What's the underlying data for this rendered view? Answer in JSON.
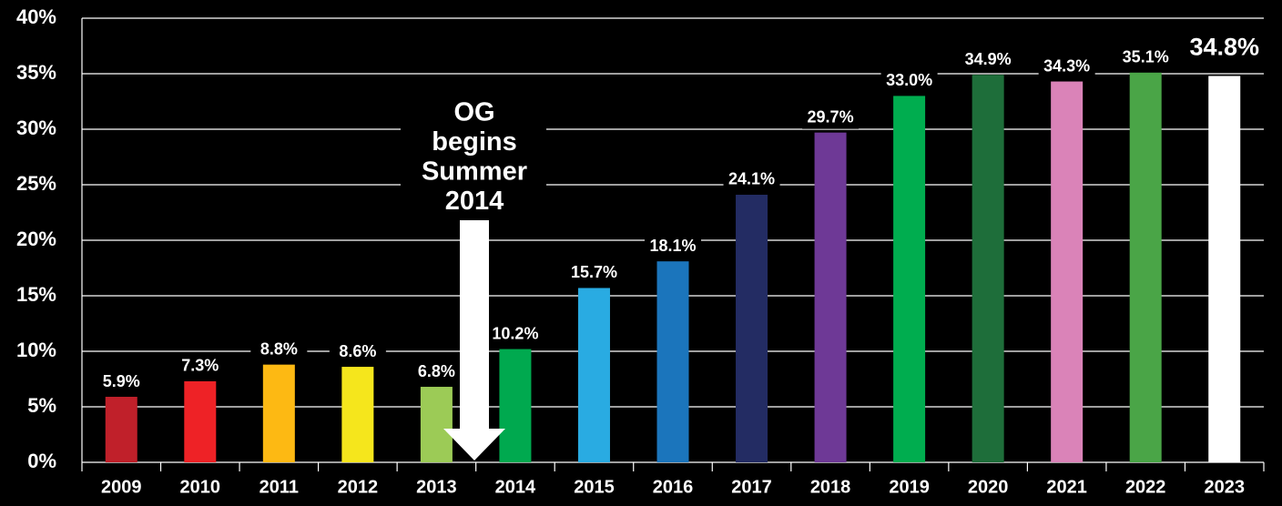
{
  "chart_data": {
    "type": "bar",
    "categories": [
      "2009",
      "2010",
      "2011",
      "2012",
      "2013",
      "2014",
      "2015",
      "2016",
      "2017",
      "2018",
      "2019",
      "2020",
      "2021",
      "2022",
      "2023"
    ],
    "values": [
      5.9,
      7.3,
      8.8,
      8.6,
      6.8,
      10.2,
      15.7,
      18.1,
      24.1,
      29.7,
      33.0,
      34.9,
      34.3,
      35.1,
      34.8
    ],
    "value_labels": [
      "5.9%",
      "7.3%",
      "8.8%",
      "8.6%",
      "6.8%",
      "10.2%",
      "15.7%",
      "18.1%",
      "24.1%",
      "29.7%",
      "33.0%",
      "34.9%",
      "34.3%",
      "35.1%",
      "34.8%"
    ],
    "colors": [
      "#c0202a",
      "#ee2226",
      "#fdb913",
      "#f5e61c",
      "#9ccb56",
      "#00a94f",
      "#29abe2",
      "#1b75bc",
      "#232c63",
      "#6e3996",
      "#00ad4f",
      "#1e6e3a",
      "#da83b8",
      "#4aa547",
      "#ffffff"
    ],
    "ylim": [
      0,
      40
    ],
    "yticks": [
      {
        "value": 0,
        "label": "0%"
      },
      {
        "value": 5,
        "label": "5%"
      },
      {
        "value": 10,
        "label": "10%"
      },
      {
        "value": 15,
        "label": "15%"
      },
      {
        "value": 20,
        "label": "20%"
      },
      {
        "value": 25,
        "label": "25%"
      },
      {
        "value": 30,
        "label": "30%"
      },
      {
        "value": 35,
        "label": "35%"
      },
      {
        "value": 40,
        "label": "40%"
      }
    ],
    "grid": true,
    "annotation": [
      "OG",
      "begins",
      "Summer",
      "2014"
    ]
  }
}
